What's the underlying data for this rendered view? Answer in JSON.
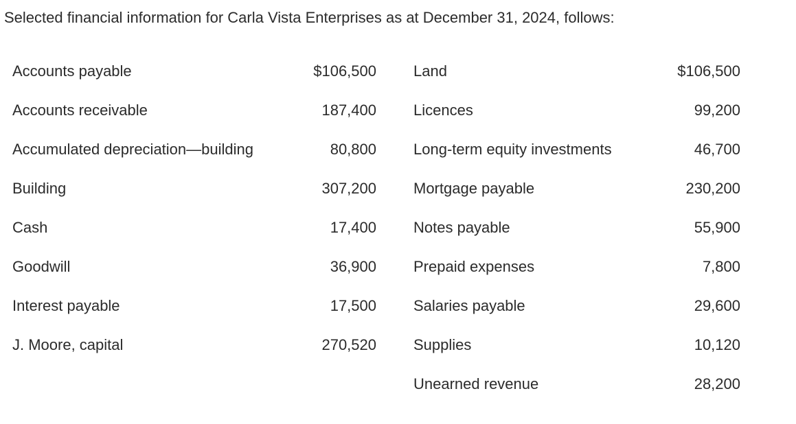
{
  "intro": "Selected financial information for Carla Vista Enterprises as at December 31, 2024, follows:",
  "rows": [
    {
      "left_label": "Accounts payable",
      "left_amount": "$106,500",
      "right_label": "Land",
      "right_amount": "$106,500"
    },
    {
      "left_label": "Accounts receivable",
      "left_amount": "187,400",
      "right_label": "Licences",
      "right_amount": "99,200"
    },
    {
      "left_label": "Accumulated depreciation—building",
      "left_amount": "80,800",
      "right_label": "Long-term equity investments",
      "right_amount": "46,700"
    },
    {
      "left_label": "Building",
      "left_amount": "307,200",
      "right_label": "Mortgage payable",
      "right_amount": "230,200"
    },
    {
      "left_label": "Cash",
      "left_amount": "17,400",
      "right_label": "Notes payable",
      "right_amount": "55,900"
    },
    {
      "left_label": "Goodwill",
      "left_amount": "36,900",
      "right_label": "Prepaid expenses",
      "right_amount": "7,800"
    },
    {
      "left_label": "Interest payable",
      "left_amount": "17,500",
      "right_label": "Salaries payable",
      "right_amount": "29,600"
    },
    {
      "left_label": "J. Moore, capital",
      "left_amount": "270,520",
      "right_label": "Supplies",
      "right_amount": "10,120"
    },
    {
      "left_label": "",
      "left_amount": "",
      "right_label": "Unearned revenue",
      "right_amount": "28,200"
    }
  ]
}
